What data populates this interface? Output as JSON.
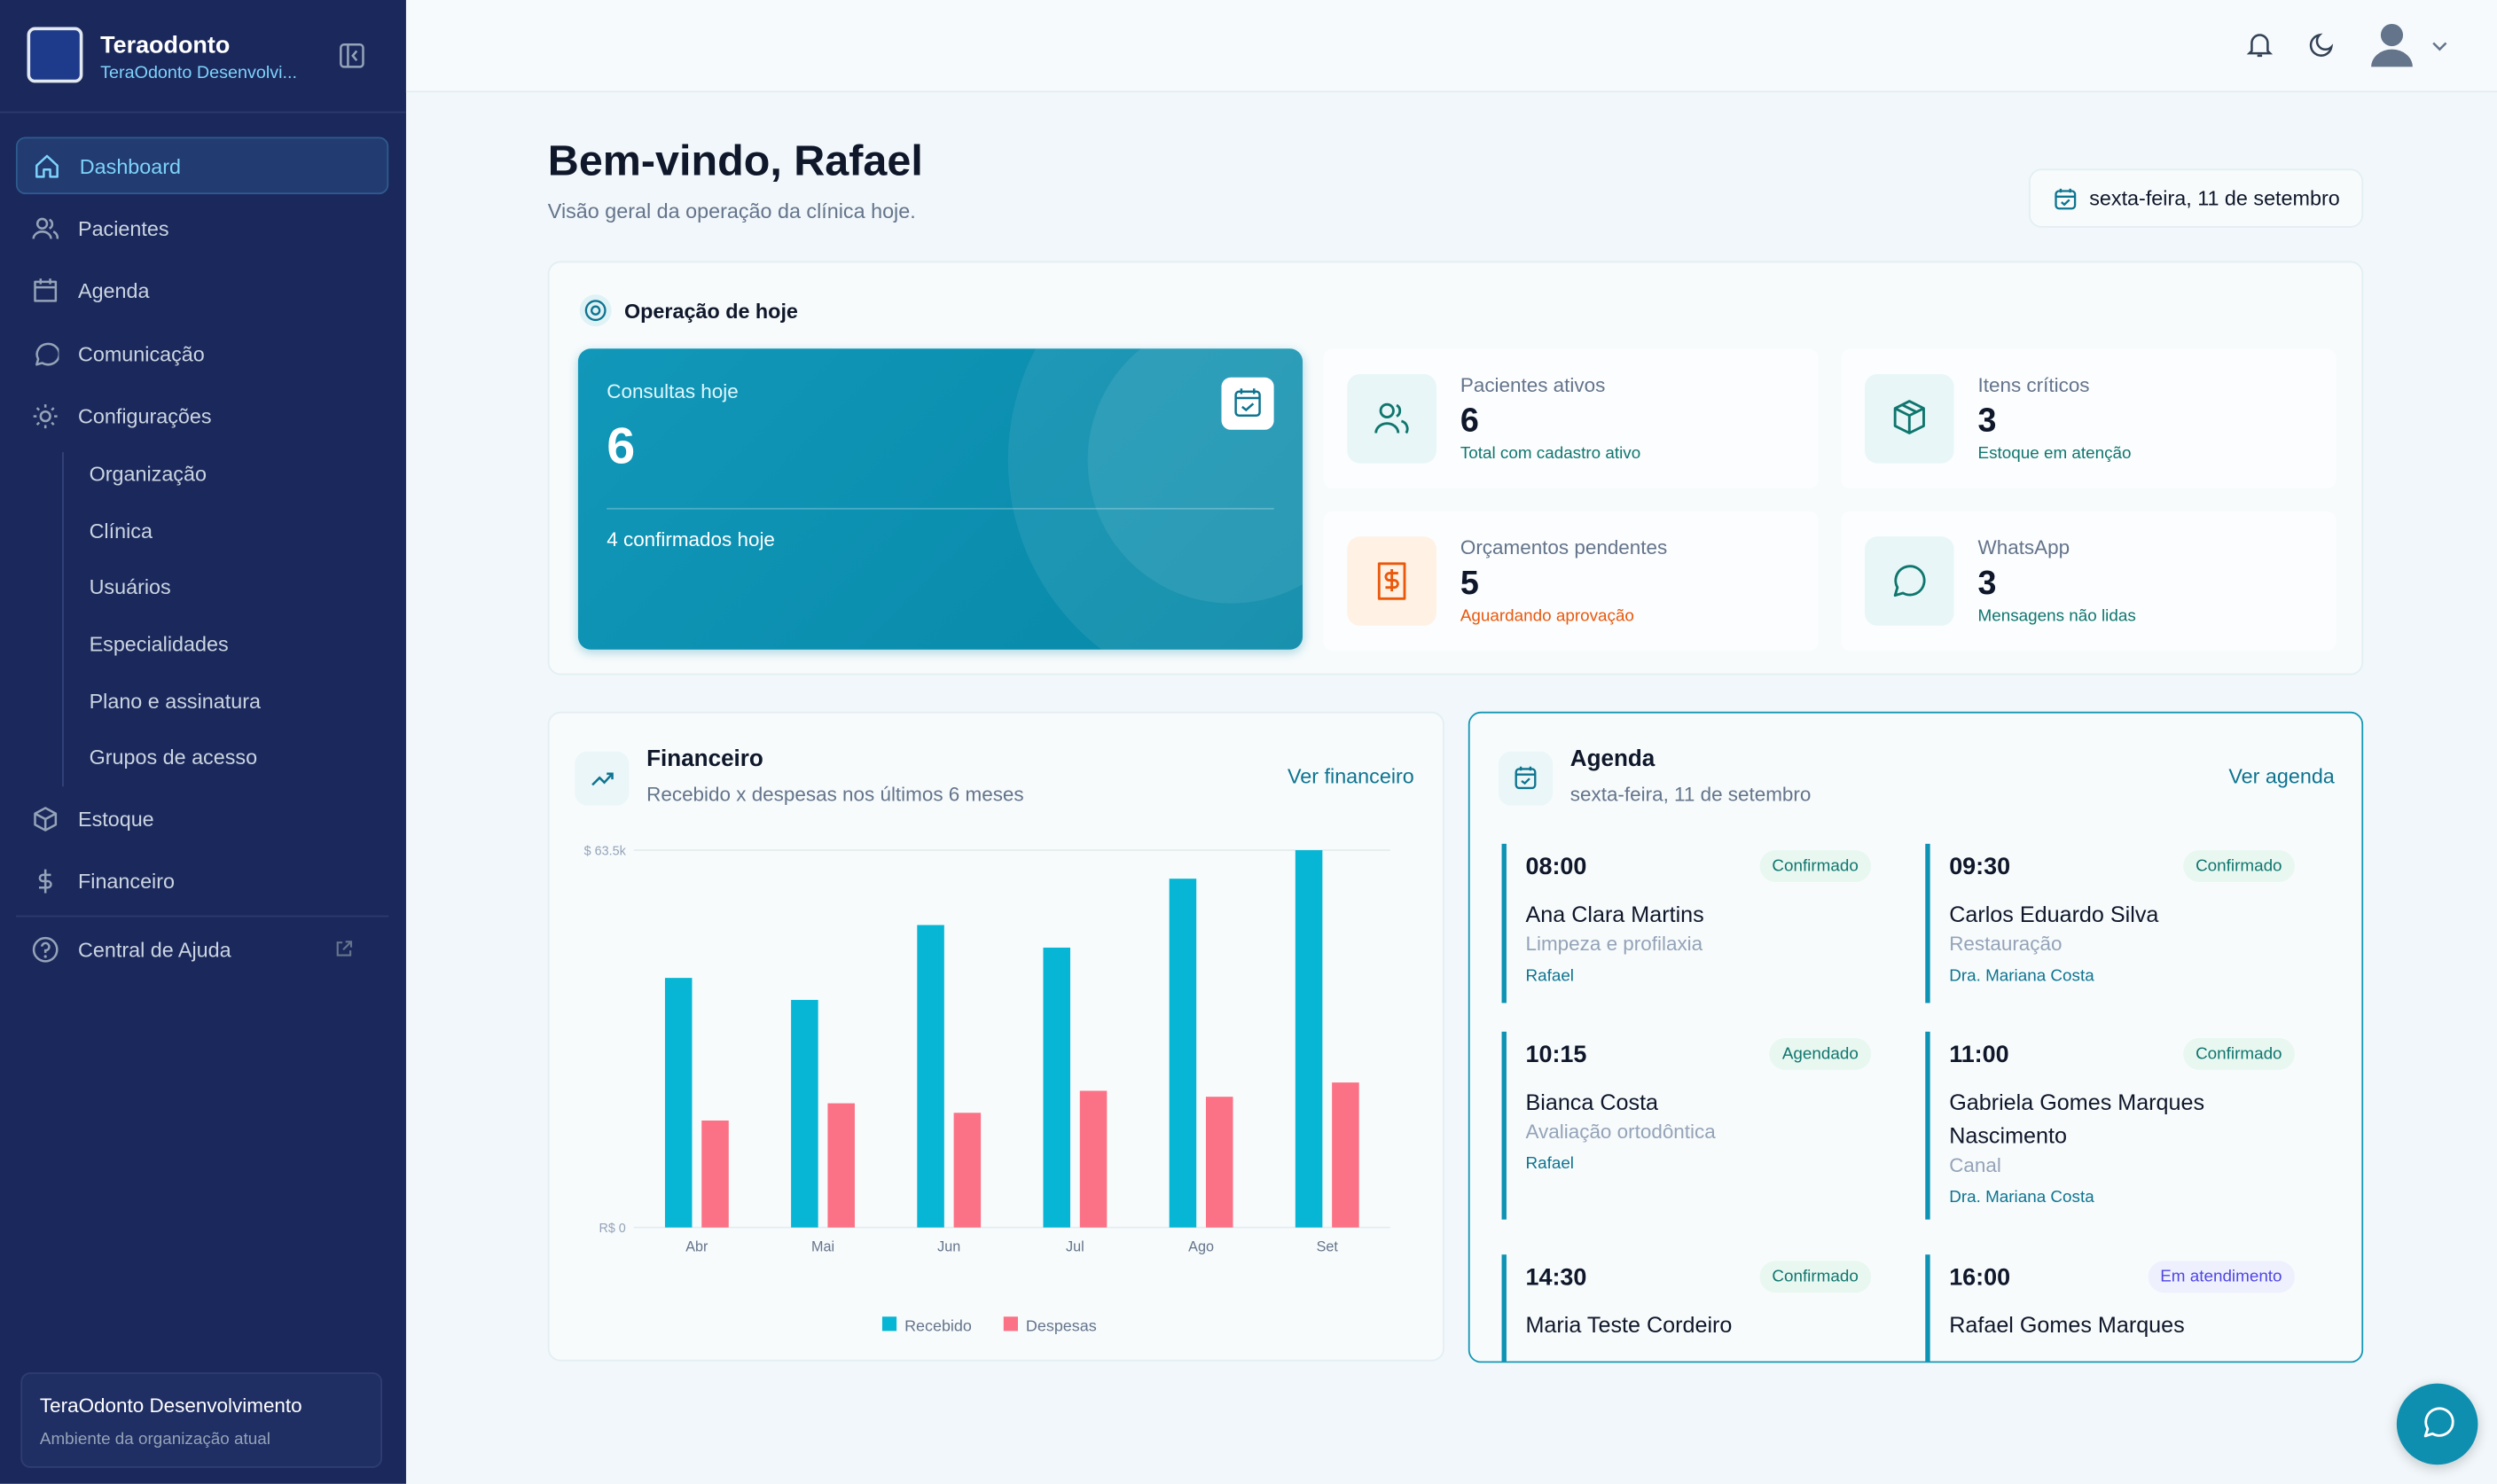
{
  "sidebar": {
    "brand": "Teraodonto",
    "org": "TeraOdonto Desenvolvi...",
    "nav": [
      "Dashboard",
      "Pacientes",
      "Agenda",
      "Comunicação",
      "Configurações"
    ],
    "sub_nav": [
      "Organização",
      "Clínica",
      "Usuários",
      "Especialidades",
      "Plano e assinatura",
      "Grupos de acesso"
    ],
    "nav_bottom": [
      "Estoque",
      "Financeiro"
    ],
    "help": "Central de Ajuda",
    "footer": {
      "title": "TeraOdonto Desenvolvimento",
      "subtitle": "Ambiente da organização atual"
    }
  },
  "header": {
    "title": "Bem-vindo, Rafael",
    "subtitle": "Visão geral da operação da clínica hoje.",
    "date": "sexta-feira, 11 de setembro"
  },
  "today": {
    "title": "Operação de hoje",
    "main": {
      "label": "Consultas hoje",
      "value": 6,
      "note": "4 confirmados hoje"
    },
    "stats": [
      {
        "label": "Pacientes ativos",
        "value": 6,
        "note": "Total com cadastro ativo",
        "color": "#0f766e"
      },
      {
        "label": "Itens críticos",
        "value": 3,
        "note": "Estoque em atenção",
        "color": "#0f766e"
      },
      {
        "label": "Orçamentos pendentes",
        "value": 5,
        "note": "Aguardando aprovação",
        "color": "#ea580c"
      },
      {
        "label": "WhatsApp",
        "value": 3,
        "note": "Mensagens não lidas",
        "color": "#0f766e"
      }
    ]
  },
  "finance": {
    "title": "Financeiro",
    "subtitle": "Recebido x despesas nos últimos 6 meses",
    "link": "Ver financeiro",
    "chart_data": {
      "type": "bar",
      "categories": [
        "Abr",
        "Mai",
        "Jun",
        "Jul",
        "Ago",
        "Set"
      ],
      "series": [
        {
          "name": "Recebido",
          "color": "#06b6d4",
          "values": [
            42000,
            38300,
            50900,
            47100,
            58700,
            63500
          ]
        },
        {
          "name": "Despesas",
          "color": "#fb7185",
          "values": [
            18000,
            20900,
            19300,
            23000,
            22000,
            24400
          ]
        }
      ],
      "ylim": [
        0,
        63500
      ],
      "yticks": [
        {
          "value": 0,
          "label": "R$ 0"
        },
        {
          "value": 63500,
          "label": "$ 63.5k"
        }
      ],
      "grid": true,
      "legend": "bottom"
    }
  },
  "agenda": {
    "title": "Agenda",
    "subtitle": "sexta-feira, 11 de setembro",
    "link": "Ver agenda",
    "items": [
      {
        "time": "08:00",
        "status": "Confirmado",
        "status_color": "#0f766e",
        "patient": "Ana Clara Martins",
        "procedure": "Limpeza e profilaxia",
        "dentist": "Rafael"
      },
      {
        "time": "09:30",
        "status": "Confirmado",
        "status_color": "#0f766e",
        "patient": "Carlos Eduardo Silva",
        "procedure": "Restauração",
        "dentist": "Dra. Mariana Costa"
      },
      {
        "time": "10:15",
        "status": "Agendado",
        "status_color": "#0f766e",
        "patient": "Bianca Costa",
        "procedure": "Avaliação ortodôntica",
        "dentist": "Rafael"
      },
      {
        "time": "11:00",
        "status": "Confirmado",
        "status_color": "#0f766e",
        "patient": "Gabriela Gomes Marques Nascimento",
        "procedure": "Canal",
        "dentist": "Dra. Mariana Costa"
      },
      {
        "time": "14:30",
        "status": "Confirmado",
        "status_color": "#0f766e",
        "patient": "Maria Teste Cordeiro"
      },
      {
        "time": "16:00",
        "status": "Em atendimento",
        "status_color": "#4f46e5",
        "patient": "Rafael Gomes Marques"
      }
    ]
  }
}
